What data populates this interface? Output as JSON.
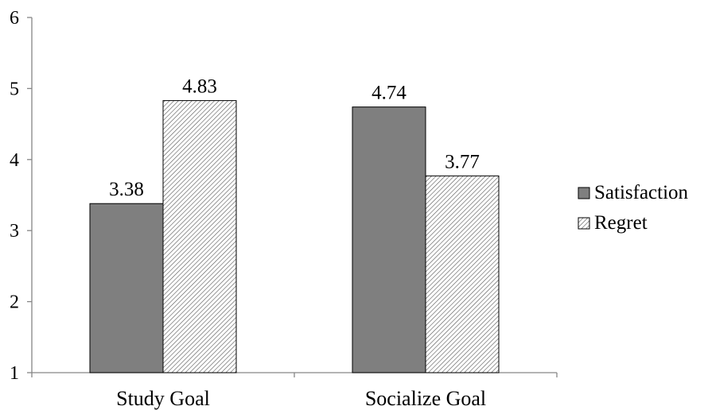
{
  "chart_data": {
    "type": "bar",
    "title": "",
    "xlabel": "",
    "ylabel": "",
    "categories": [
      "Study Goal",
      "Socialize Goal"
    ],
    "series": [
      {
        "name": "Satisfaction",
        "values": [
          3.38,
          4.74
        ],
        "color": "#7f7f7f",
        "pattern": "solid"
      },
      {
        "name": "Regret",
        "values": [
          4.83,
          3.77
        ],
        "color": "#ffffff",
        "pattern": "diagonal-hatch"
      }
    ],
    "data_labels": [
      [
        "3.38",
        "4.74"
      ],
      [
        "4.83",
        "3.77"
      ]
    ],
    "ylim": [
      1,
      6
    ],
    "yticks": [
      1,
      2,
      3,
      4,
      5,
      6
    ],
    "ytick_labels": [
      "1",
      "2",
      "3",
      "4",
      "5",
      "6"
    ],
    "grid": false,
    "legend": {
      "position": "right"
    }
  }
}
